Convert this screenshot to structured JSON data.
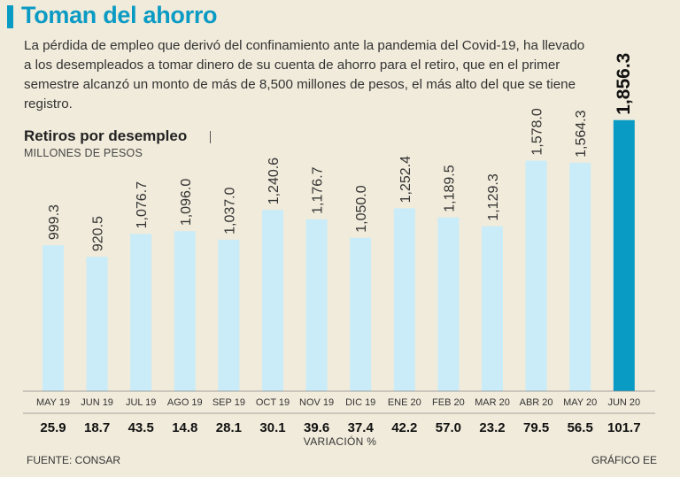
{
  "header": {
    "title": "Toman del ahorro",
    "intro": "La pérdida de empleo que derivó del confinamiento ante la pandemia del Covid-19, ha llevado a los desempleados a tomar dinero de su cuenta de ahorro para el retiro, que en el primer semestre alcanzó un monto de más de 8,500 millones de pesos, el más alto del que se tiene registro."
  },
  "footer": {
    "source": "FUENTE: CONSAR",
    "credit": "GRÁFICO EE"
  },
  "colors": {
    "bar": "#c9ecf8",
    "bar_highlight": "#0a9bc4",
    "title": "#0a9bc4"
  },
  "chart_data": {
    "type": "bar",
    "title": "Retiros por desempleo",
    "ylabel": "MILLONES DE PESOS",
    "xlabel": "VARIACIÓN %",
    "ylim": [
      0,
      2000
    ],
    "highlight_index": 13,
    "categories": [
      "MAY 19",
      "JUN 19",
      "JUL 19",
      "AGO 19",
      "SEP 19",
      "OCT 19",
      "NOV 19",
      "DIC 19",
      "ENE 20",
      "FEB 20",
      "MAR 20",
      "ABR 20",
      "MAY 20",
      "JUN 20"
    ],
    "values": [
      999.3,
      920.5,
      1076.7,
      1096.0,
      1037.0,
      1240.6,
      1176.7,
      1050.0,
      1252.4,
      1189.5,
      1129.3,
      1578.0,
      1564.3,
      1856.3
    ],
    "value_labels": [
      "999.3",
      "920.5",
      "1,076.7",
      "1,096.0",
      "1,037.0",
      "1,240.6",
      "1,176.7",
      "1,050.0",
      "1,252.4",
      "1,189.5",
      "1,129.3",
      "1,578.0",
      "1,564.3",
      "1,856.3"
    ],
    "variation_labels": [
      "25.9",
      "18.7",
      "43.5",
      "14.8",
      "28.1",
      "30.1",
      "39.6",
      "37.4",
      "42.2",
      "57.0",
      "23.2",
      "79.5",
      "56.5",
      "101.7"
    ]
  }
}
